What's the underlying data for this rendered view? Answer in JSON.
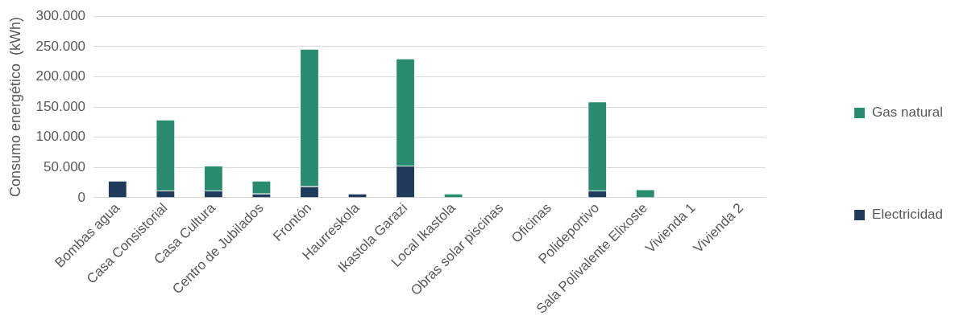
{
  "chart_data": {
    "type": "bar",
    "stacked": true,
    "ylabel": "Consumo energético  (kWh)",
    "categories": [
      "Bombas agua",
      "Casa Consistorial",
      "Casa Cultura",
      "Centro de Jubilados",
      "Frontón",
      "Haurreskola",
      "Ikastola Garazi",
      "Local Ikastola",
      "Obras solar piscinas",
      "Oficinas",
      "Polideportivo",
      "Sala Polivalente Elixoste",
      "Vivienda 1",
      "Vivienda 2"
    ],
    "series": [
      {
        "name": "Electricidad",
        "color": "#1f3a5a",
        "values": [
          28000,
          12000,
          12000,
          7000,
          19000,
          7000,
          53000,
          0,
          0,
          0,
          12000,
          0,
          0,
          0
        ]
      },
      {
        "name": "Gas natural",
        "color": "#2a8c6e",
        "values": [
          0,
          117000,
          41000,
          21000,
          227000,
          0,
          177000,
          7000,
          0,
          0,
          147000,
          14000,
          0,
          0
        ]
      }
    ],
    "ylim": [
      0,
      300000
    ],
    "yticks": [
      {
        "value": 0,
        "label": "0"
      },
      {
        "value": 50000,
        "label": "50.000"
      },
      {
        "value": 100000,
        "label": "100.000"
      },
      {
        "value": 150000,
        "label": "150.000"
      },
      {
        "value": 200000,
        "label": "200.000"
      },
      {
        "value": 250000,
        "label": "250.000"
      },
      {
        "value": 300000,
        "label": "300.000"
      }
    ],
    "grid": "y",
    "legend": "right"
  }
}
